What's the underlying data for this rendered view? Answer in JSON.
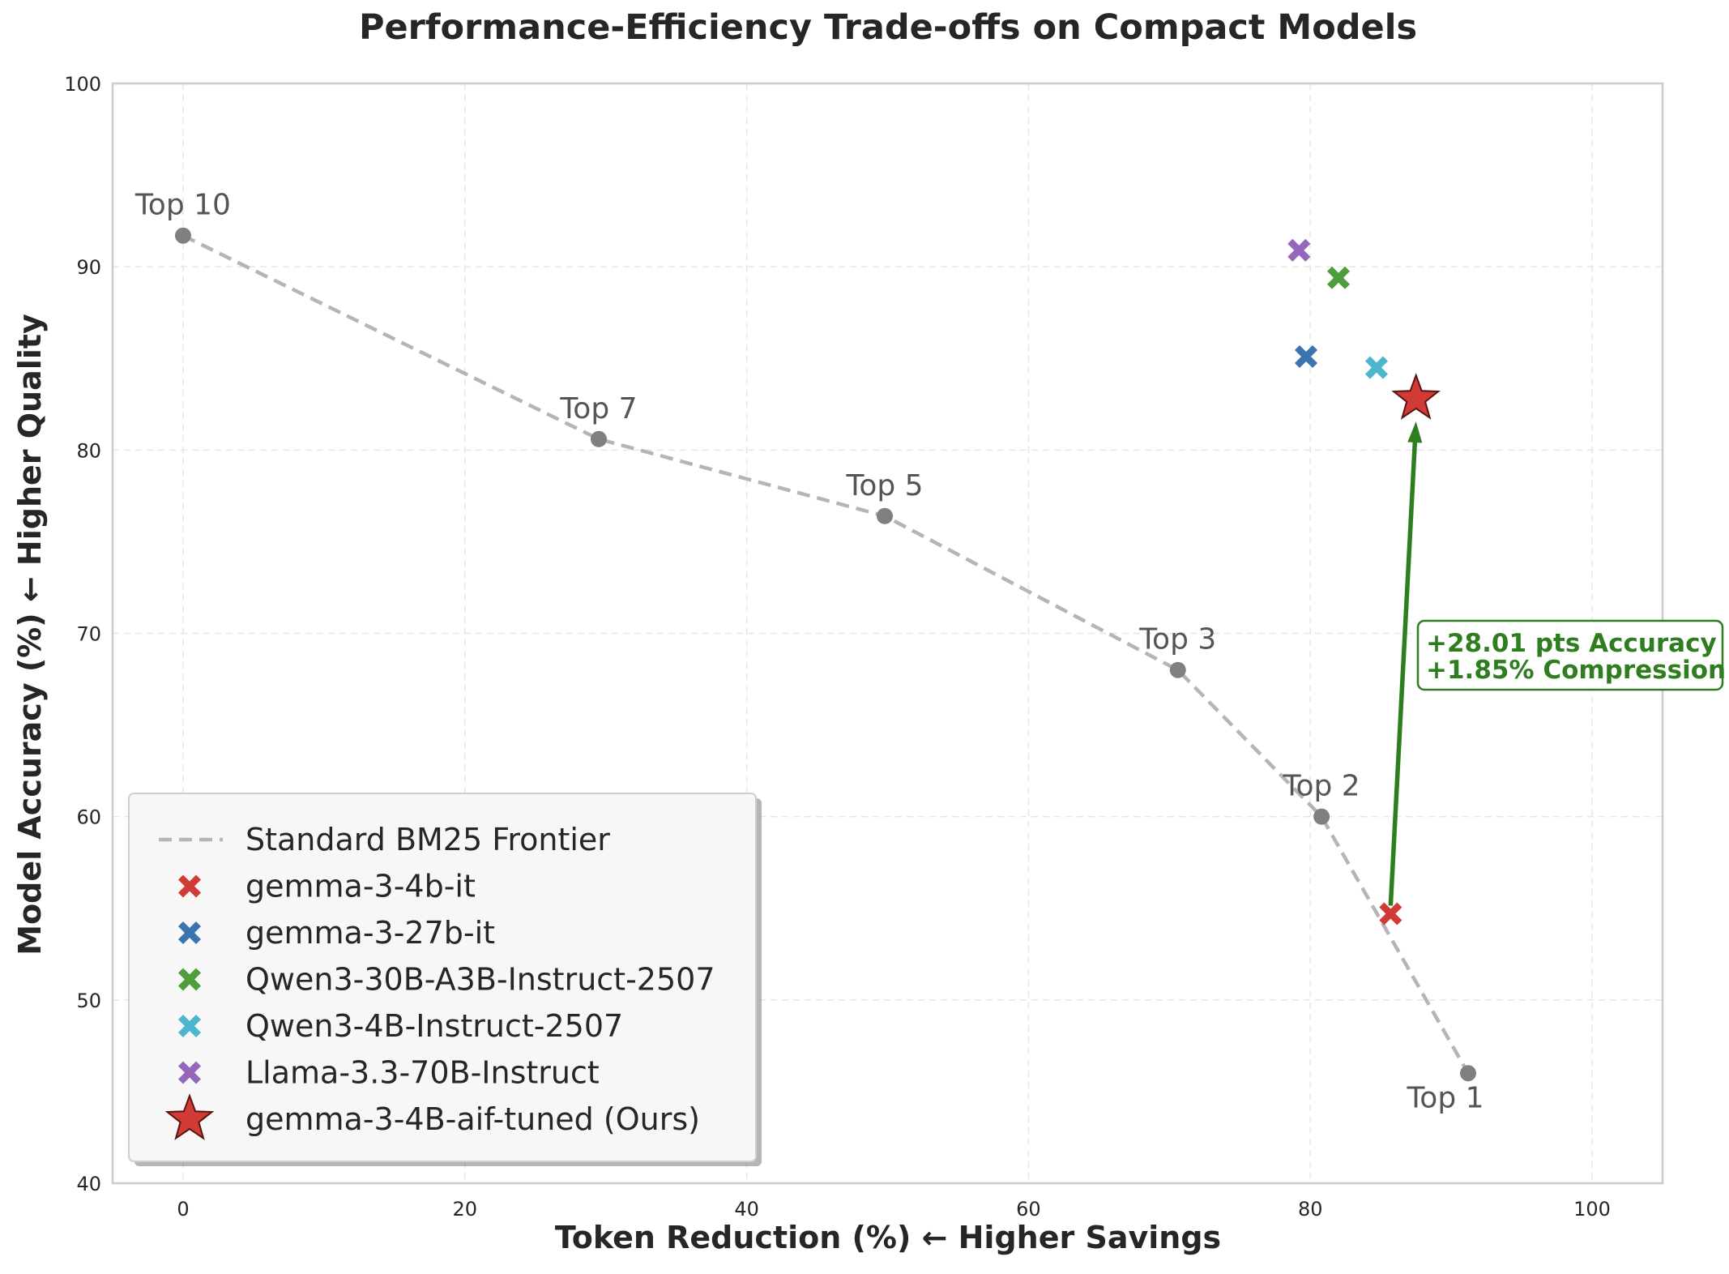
{
  "chart_data": {
    "type": "scatter",
    "title": "Performance-Efficiency Trade-offs on Compact Models",
    "xlabel": "Token Reduction (%) ← Higher Savings",
    "ylabel": "Model Accuracy (%) ← Higher Quality",
    "xlim": [
      -5,
      105
    ],
    "ylim": [
      40,
      100
    ],
    "x_ticks": [
      0,
      20,
      40,
      60,
      80,
      100
    ],
    "y_ticks": [
      40,
      50,
      60,
      70,
      80,
      90,
      100
    ],
    "grid": true,
    "legend_position": "lower-left",
    "frontier": {
      "name": "Standard BM25 Frontier",
      "color": "#b5b5b5",
      "point_color": "#808080",
      "points": [
        {
          "label": "Top 10",
          "x": 0.0,
          "y": 91.7,
          "label_pos": "above"
        },
        {
          "label": "Top 7",
          "x": 29.5,
          "y": 80.6,
          "label_pos": "above"
        },
        {
          "label": "Top 5",
          "x": 49.8,
          "y": 76.4,
          "label_pos": "above"
        },
        {
          "label": "Top 3",
          "x": 70.6,
          "y": 68.0,
          "label_pos": "above"
        },
        {
          "label": "Top 2",
          "x": 80.8,
          "y": 60.0,
          "label_pos": "above"
        },
        {
          "label": "Top 1",
          "x": 91.2,
          "y": 46.0,
          "label_pos": "below"
        }
      ]
    },
    "models": [
      {
        "name": "gemma-3-4b-it",
        "x": 85.7,
        "y": 54.7,
        "color": "#d03b36",
        "marker": "x"
      },
      {
        "name": "gemma-3-27b-it",
        "x": 79.7,
        "y": 85.1,
        "color": "#3a75b0",
        "marker": "x"
      },
      {
        "name": "Qwen3-30B-A3B-Instruct-2507",
        "x": 82.0,
        "y": 89.4,
        "color": "#4f9e3c",
        "marker": "x"
      },
      {
        "name": "Qwen3-4B-Instruct-2507",
        "x": 84.7,
        "y": 84.5,
        "color": "#4bb6cc",
        "marker": "x"
      },
      {
        "name": "Llama-3.3-70B-Instruct",
        "x": 79.2,
        "y": 90.9,
        "color": "#9467bd",
        "marker": "x"
      },
      {
        "name": "gemma-3-4B-aif-tuned (Ours)",
        "x": 87.5,
        "y": 82.8,
        "color": "#d03b36",
        "marker": "star"
      }
    ],
    "annotation": {
      "lines": [
        "+28.01 pts Accuracy",
        "+1.85% Compression"
      ],
      "color": "#2e7d1f",
      "from_model": "gemma-3-4b-it",
      "to_model": "gemma-3-4B-aif-tuned (Ours)"
    }
  }
}
